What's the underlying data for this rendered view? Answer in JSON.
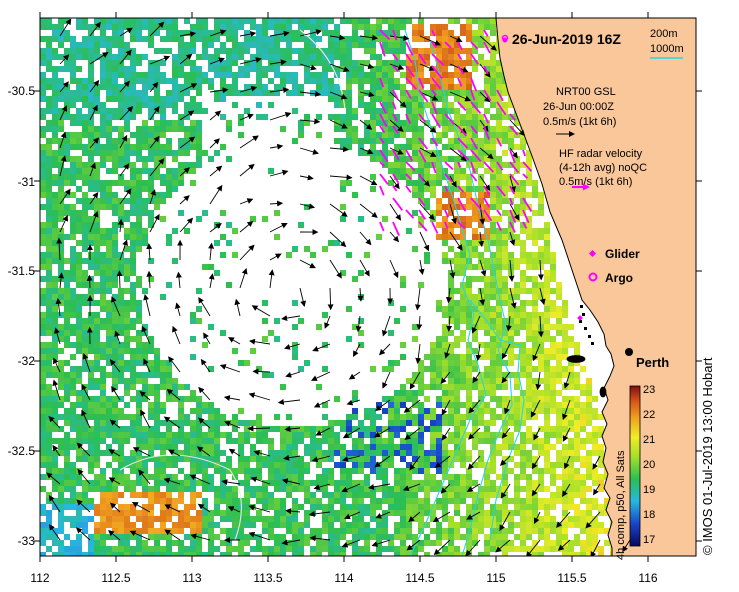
{
  "title": "26-Jun-2019 16Z",
  "depth_legend": {
    "contour_a": "200m",
    "contour_b": "1000m"
  },
  "gsl": {
    "line1": "NRT00 GSL",
    "line2": "26-Jun 00:00Z",
    "line3": "0.5m/s (1kt 6h)"
  },
  "hf": {
    "line1": "HF radar velocity",
    "line2": "(4-12h avg) noQC",
    "line3": "0.5m/s (1kt 6h)"
  },
  "legend": {
    "glider": "Glider",
    "argo": "Argo"
  },
  "city": "Perth",
  "credit": "© IMOS 01-Jul-2019 13:00 Hobart",
  "colorbar": {
    "label": "4h comp, p50, All Sats",
    "ticks": [
      "23",
      "22",
      "21",
      "20",
      "19",
      "18",
      "17"
    ]
  },
  "x_ticks": [
    "112",
    "112.5",
    "113",
    "113.5",
    "114",
    "114.5",
    "115",
    "115.5",
    "116"
  ],
  "y_ticks": [
    "-30.5",
    "-31",
    "-31.5",
    "-32",
    "-32.5",
    "-33"
  ],
  "colors": {
    "land": "#f9c79a",
    "coast": "#000000",
    "contour": "#22d8e6",
    "hf_arrow": "#ff00ff",
    "arrow": "#000000"
  }
}
